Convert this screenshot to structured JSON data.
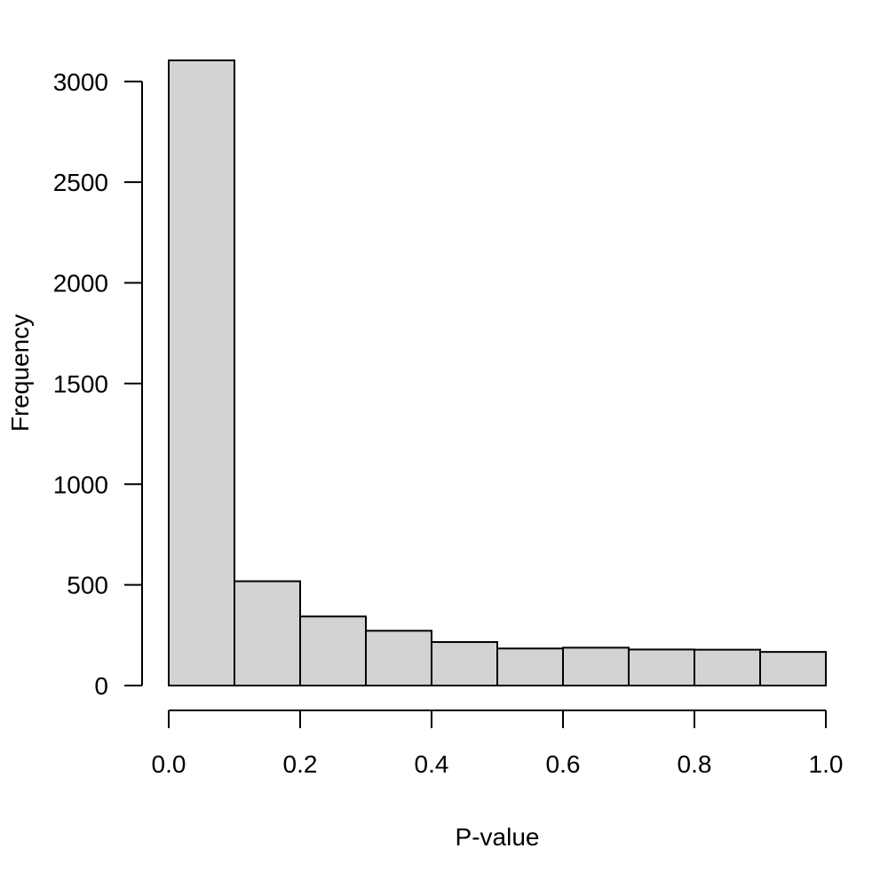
{
  "chart_data": {
    "type": "bar",
    "title": "",
    "xlabel": "P-value",
    "ylabel": "Frequency",
    "bin_edges": [
      0.0,
      0.1,
      0.2,
      0.3,
      0.4,
      0.5,
      0.6,
      0.7,
      0.8,
      0.9,
      1.0
    ],
    "values": [
      3105,
      518,
      343,
      272,
      216,
      184,
      188,
      179,
      178,
      167
    ],
    "xlim": [
      0,
      1
    ],
    "ylim": [
      0,
      3105
    ],
    "x_ticks": [
      {
        "value": 0.0,
        "label": "0.0"
      },
      {
        "value": 0.2,
        "label": "0.2"
      },
      {
        "value": 0.4,
        "label": "0.4"
      },
      {
        "value": 0.6,
        "label": "0.6"
      },
      {
        "value": 0.8,
        "label": "0.8"
      },
      {
        "value": 1.0,
        "label": "1.0"
      }
    ],
    "y_ticks": [
      {
        "value": 0,
        "label": "0"
      },
      {
        "value": 500,
        "label": "500"
      },
      {
        "value": 1000,
        "label": "1000"
      },
      {
        "value": 1500,
        "label": "1500"
      },
      {
        "value": 2000,
        "label": "2000"
      },
      {
        "value": 2500,
        "label": "2500"
      },
      {
        "value": 3000,
        "label": "3000"
      }
    ],
    "grid": false,
    "colors": {
      "bar_fill": "#d3d3d3",
      "bar_stroke": "#000000"
    }
  }
}
